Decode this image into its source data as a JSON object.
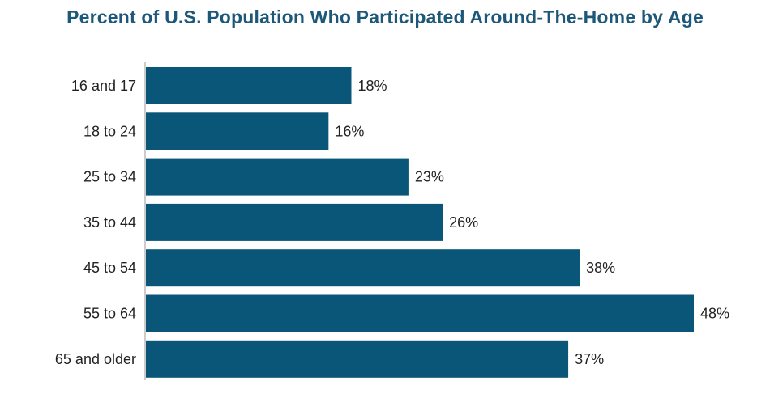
{
  "chart_data": {
    "type": "bar",
    "orientation": "horizontal",
    "title": "Percent of U.S. Population Who Participated Around-The-Home by Age",
    "categories": [
      "16 and 17",
      "18 to 24",
      "25 to 34",
      "35 to 44",
      "45 to 54",
      "55 to 64",
      "65 and older"
    ],
    "values": [
      18,
      16,
      23,
      26,
      38,
      48,
      37
    ],
    "value_labels": [
      "18%",
      "16%",
      "23%",
      "26%",
      "38%",
      "48%",
      "37%"
    ],
    "xlim": [
      0,
      48
    ],
    "grid": false,
    "bar_color": "#0a5678",
    "title_color": "#1d5878"
  }
}
